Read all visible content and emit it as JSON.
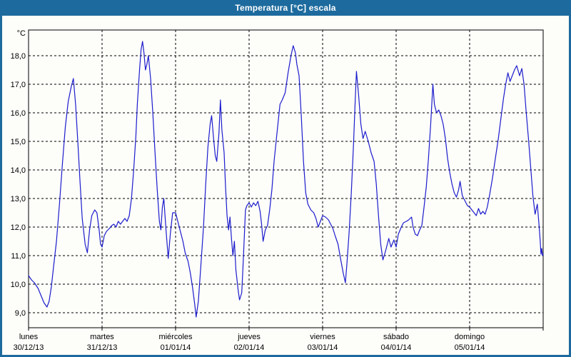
{
  "window": {
    "title": "Temperatura [°C] escala"
  },
  "colors": {
    "titlebar_bg": "#1d6b9e",
    "window_border": "#1d6b9e",
    "content_bg": "#fdfdfa",
    "line": "#1c1ccd",
    "grid": "#000000",
    "frame": "#000000",
    "text": "#000000"
  },
  "chart_data": {
    "type": "line",
    "title": "Temperatura [°C] escala",
    "ylabel_unit": "°C",
    "grid": "dashed",
    "legend": "none",
    "y_axis": {
      "min_value": 8.5,
      "max_value": 18.9,
      "tick_values": [
        18,
        17,
        16,
        15,
        14,
        13,
        12,
        11,
        10,
        9
      ],
      "tick_labels": [
        "18,0",
        "17,0",
        "16,0",
        "15,0",
        "14,0",
        "13,0",
        "12,0",
        "11,0",
        "10,0",
        "9,0"
      ]
    },
    "x_axis": {
      "span_days": 7,
      "days": [
        {
          "name": "lunes",
          "date": "30/12/13"
        },
        {
          "name": "martes",
          "date": "31/12/13"
        },
        {
          "name": "miércoles",
          "date": "01/01/14"
        },
        {
          "name": "jueves",
          "date": "02/01/14"
        },
        {
          "name": "viernes",
          "date": "03/01/14"
        },
        {
          "name": "sábado",
          "date": "04/01/14"
        },
        {
          "name": "domingo",
          "date": "05/01/14"
        }
      ]
    },
    "series": [
      {
        "name": "Temperatura",
        "color": "#1c1ccd",
        "points": [
          [
            0.0,
            10.3
          ],
          [
            0.04,
            10.15
          ],
          [
            0.08,
            10.05
          ],
          [
            0.13,
            9.85
          ],
          [
            0.17,
            9.6
          ],
          [
            0.21,
            9.35
          ],
          [
            0.25,
            9.2
          ],
          [
            0.28,
            9.4
          ],
          [
            0.31,
            9.9
          ],
          [
            0.34,
            10.6
          ],
          [
            0.38,
            11.5
          ],
          [
            0.42,
            12.8
          ],
          [
            0.46,
            14.2
          ],
          [
            0.5,
            15.5
          ],
          [
            0.54,
            16.4
          ],
          [
            0.58,
            16.9
          ],
          [
            0.61,
            17.2
          ],
          [
            0.64,
            16.3
          ],
          [
            0.67,
            15.0
          ],
          [
            0.7,
            13.6
          ],
          [
            0.73,
            12.3
          ],
          [
            0.77,
            11.4
          ],
          [
            0.8,
            11.1
          ],
          [
            0.83,
            11.9
          ],
          [
            0.86,
            12.4
          ],
          [
            0.9,
            12.6
          ],
          [
            0.93,
            12.5
          ],
          [
            0.96,
            11.9
          ],
          [
            0.98,
            11.4
          ],
          [
            1.0,
            11.3
          ],
          [
            1.03,
            11.7
          ],
          [
            1.06,
            11.85
          ],
          [
            1.1,
            11.95
          ],
          [
            1.13,
            12.05
          ],
          [
            1.16,
            12.1
          ],
          [
            1.19,
            12.0
          ],
          [
            1.22,
            12.2
          ],
          [
            1.25,
            12.1
          ],
          [
            1.28,
            12.2
          ],
          [
            1.31,
            12.3
          ],
          [
            1.34,
            12.2
          ],
          [
            1.37,
            12.4
          ],
          [
            1.4,
            13.0
          ],
          [
            1.43,
            14.0
          ],
          [
            1.46,
            15.2
          ],
          [
            1.48,
            16.3
          ],
          [
            1.51,
            17.5
          ],
          [
            1.53,
            18.2
          ],
          [
            1.55,
            18.5
          ],
          [
            1.57,
            18.1
          ],
          [
            1.59,
            17.5
          ],
          [
            1.61,
            17.7
          ],
          [
            1.63,
            18.0
          ],
          [
            1.66,
            17.2
          ],
          [
            1.69,
            16.0
          ],
          [
            1.72,
            14.6
          ],
          [
            1.75,
            13.3
          ],
          [
            1.78,
            12.2
          ],
          [
            1.8,
            11.9
          ],
          [
            1.82,
            12.7
          ],
          [
            1.84,
            13.0
          ],
          [
            1.87,
            11.9
          ],
          [
            1.9,
            10.9
          ],
          [
            1.93,
            11.8
          ],
          [
            1.96,
            12.5
          ],
          [
            2.0,
            12.5
          ],
          [
            2.03,
            12.2
          ],
          [
            2.07,
            11.8
          ],
          [
            2.1,
            11.5
          ],
          [
            2.13,
            11.1
          ],
          [
            2.17,
            10.8
          ],
          [
            2.2,
            10.4
          ],
          [
            2.23,
            9.9
          ],
          [
            2.26,
            9.3
          ],
          [
            2.28,
            8.85
          ],
          [
            2.31,
            9.4
          ],
          [
            2.34,
            10.5
          ],
          [
            2.38,
            12.0
          ],
          [
            2.41,
            13.5
          ],
          [
            2.44,
            14.8
          ],
          [
            2.47,
            15.6
          ],
          [
            2.49,
            15.9
          ],
          [
            2.52,
            15.0
          ],
          [
            2.54,
            14.5
          ],
          [
            2.56,
            14.3
          ],
          [
            2.59,
            15.3
          ],
          [
            2.61,
            16.45
          ],
          [
            2.63,
            15.4
          ],
          [
            2.66,
            14.6
          ],
          [
            2.68,
            13.4
          ],
          [
            2.7,
            12.4
          ],
          [
            2.72,
            11.9
          ],
          [
            2.74,
            12.35
          ],
          [
            2.76,
            11.6
          ],
          [
            2.78,
            11.0
          ],
          [
            2.8,
            11.5
          ],
          [
            2.82,
            10.5
          ],
          [
            2.85,
            9.8
          ],
          [
            2.87,
            9.45
          ],
          [
            2.9,
            9.7
          ],
          [
            2.92,
            10.8
          ],
          [
            2.95,
            12.6
          ],
          [
            2.97,
            12.75
          ],
          [
            3.0,
            12.85
          ],
          [
            3.03,
            12.7
          ],
          [
            3.06,
            12.85
          ],
          [
            3.09,
            12.75
          ],
          [
            3.12,
            12.9
          ],
          [
            3.15,
            12.55
          ],
          [
            3.17,
            12.1
          ],
          [
            3.19,
            11.5
          ],
          [
            3.22,
            11.9
          ],
          [
            3.25,
            12.05
          ],
          [
            3.28,
            12.6
          ],
          [
            3.31,
            13.3
          ],
          [
            3.34,
            14.3
          ],
          [
            3.38,
            15.3
          ],
          [
            3.42,
            16.3
          ],
          [
            3.45,
            16.45
          ],
          [
            3.49,
            16.7
          ],
          [
            3.53,
            17.4
          ],
          [
            3.57,
            18.0
          ],
          [
            3.6,
            18.35
          ],
          [
            3.63,
            18.1
          ],
          [
            3.65,
            17.7
          ],
          [
            3.68,
            17.3
          ],
          [
            3.71,
            15.9
          ],
          [
            3.74,
            14.3
          ],
          [
            3.77,
            13.2
          ],
          [
            3.8,
            12.8
          ],
          [
            3.84,
            12.6
          ],
          [
            3.88,
            12.5
          ],
          [
            3.91,
            12.3
          ],
          [
            3.94,
            12.0
          ],
          [
            3.97,
            12.2
          ],
          [
            4.0,
            12.4
          ],
          [
            4.04,
            12.35
          ],
          [
            4.08,
            12.25
          ],
          [
            4.11,
            12.1
          ],
          [
            4.14,
            11.95
          ],
          [
            4.17,
            11.7
          ],
          [
            4.21,
            11.4
          ],
          [
            4.24,
            10.95
          ],
          [
            4.28,
            10.4
          ],
          [
            4.31,
            10.05
          ],
          [
            4.33,
            10.7
          ],
          [
            4.36,
            11.8
          ],
          [
            4.39,
            13.2
          ],
          [
            4.42,
            14.9
          ],
          [
            4.44,
            16.2
          ],
          [
            4.46,
            17.45
          ],
          [
            4.49,
            16.6
          ],
          [
            4.52,
            15.6
          ],
          [
            4.55,
            15.1
          ],
          [
            4.58,
            15.35
          ],
          [
            4.62,
            15.0
          ],
          [
            4.66,
            14.6
          ],
          [
            4.7,
            14.3
          ],
          [
            4.73,
            13.5
          ],
          [
            4.76,
            12.4
          ],
          [
            4.79,
            11.4
          ],
          [
            4.82,
            10.85
          ],
          [
            4.86,
            11.2
          ],
          [
            4.9,
            11.6
          ],
          [
            4.93,
            11.3
          ],
          [
            4.97,
            11.55
          ],
          [
            5.0,
            11.3
          ],
          [
            5.03,
            11.75
          ],
          [
            5.07,
            12.0
          ],
          [
            5.1,
            12.15
          ],
          [
            5.14,
            12.2
          ],
          [
            5.17,
            12.25
          ],
          [
            5.21,
            12.35
          ],
          [
            5.23,
            12.0
          ],
          [
            5.26,
            11.75
          ],
          [
            5.29,
            11.7
          ],
          [
            5.32,
            11.9
          ],
          [
            5.35,
            12.05
          ],
          [
            5.38,
            12.7
          ],
          [
            5.41,
            13.4
          ],
          [
            5.44,
            14.4
          ],
          [
            5.47,
            15.6
          ],
          [
            5.5,
            17.0
          ],
          [
            5.52,
            16.3
          ],
          [
            5.55,
            16.0
          ],
          [
            5.58,
            16.1
          ],
          [
            5.61,
            15.9
          ],
          [
            5.64,
            15.6
          ],
          [
            5.67,
            15.1
          ],
          [
            5.7,
            14.4
          ],
          [
            5.73,
            13.9
          ],
          [
            5.76,
            13.5
          ],
          [
            5.79,
            13.2
          ],
          [
            5.82,
            13.05
          ],
          [
            5.85,
            13.3
          ],
          [
            5.87,
            13.6
          ],
          [
            5.9,
            13.1
          ],
          [
            5.94,
            12.9
          ],
          [
            5.97,
            12.75
          ],
          [
            6.0,
            12.7
          ],
          [
            6.03,
            12.6
          ],
          [
            6.06,
            12.5
          ],
          [
            6.09,
            12.4
          ],
          [
            6.12,
            12.65
          ],
          [
            6.15,
            12.45
          ],
          [
            6.18,
            12.55
          ],
          [
            6.21,
            12.45
          ],
          [
            6.24,
            12.7
          ],
          [
            6.27,
            13.1
          ],
          [
            6.31,
            13.7
          ],
          [
            6.35,
            14.4
          ],
          [
            6.39,
            15.1
          ],
          [
            6.43,
            15.9
          ],
          [
            6.46,
            16.5
          ],
          [
            6.49,
            17.0
          ],
          [
            6.52,
            17.4
          ],
          [
            6.55,
            17.1
          ],
          [
            6.58,
            17.3
          ],
          [
            6.61,
            17.5
          ],
          [
            6.64,
            17.65
          ],
          [
            6.68,
            17.3
          ],
          [
            6.71,
            17.55
          ],
          [
            6.74,
            17.0
          ],
          [
            6.77,
            16.0
          ],
          [
            6.8,
            15.1
          ],
          [
            6.83,
            14.1
          ],
          [
            6.86,
            13.1
          ],
          [
            6.89,
            12.45
          ],
          [
            6.92,
            12.8
          ],
          [
            6.94,
            12.2
          ],
          [
            6.96,
            11.5
          ],
          [
            6.97,
            11.05
          ],
          [
            6.98,
            11.25
          ],
          [
            6.99,
            11.0
          ],
          [
            7.0,
            11.05
          ]
        ]
      }
    ]
  }
}
